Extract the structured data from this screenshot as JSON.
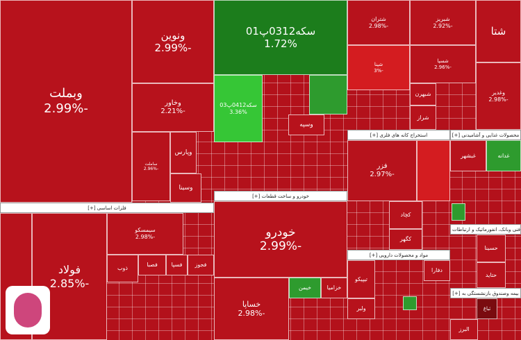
{
  "tiles": [
    {
      "label": "وبملت",
      "change": "-2.99%"
    },
    {
      "label": "ونوین",
      "change": "-2.99%"
    },
    {
      "label": "وخاور",
      "change": "-2.21%"
    },
    {
      "label": "وپارس"
    },
    {
      "label": "ساملت",
      "change": "-2.96%"
    },
    {
      "label": "وسینا"
    },
    {
      "label": "سکه0312پ01",
      "change": "1.72%"
    },
    {
      "label": "سکه0412پ03",
      "change": "3.36%"
    },
    {
      "label": "وسپه"
    },
    {
      "label": "خودرو",
      "change": "-2.99%"
    },
    {
      "label": "خساپا",
      "change": "-2.98%"
    },
    {
      "label": "خیمن"
    },
    {
      "label": "خزامیا"
    },
    {
      "label": "فولاد",
      "change": "-2.85%"
    },
    {
      "label": "سیمسکو",
      "change": "-2.98%"
    },
    {
      "label": "ذوب"
    },
    {
      "label": "فصبا"
    },
    {
      "label": "فسپا"
    },
    {
      "label": "فجوز"
    },
    {
      "label": "شتران",
      "change": "-2.98%"
    },
    {
      "label": "شبریز",
      "change": "-2.92%"
    },
    {
      "label": "شتا"
    },
    {
      "label": "وغدیر",
      "change": "-2.98%"
    },
    {
      "label": "شپنا",
      "change": "-3%"
    },
    {
      "label": "شسپا",
      "change": "-2.96%"
    },
    {
      "label": "شبهرن"
    },
    {
      "label": "شراز"
    },
    {
      "label": "فزر",
      "change": "-2.97%"
    },
    {
      "label": "کچاد"
    },
    {
      "label": "کگهر"
    },
    {
      "label": "تیپیکو"
    },
    {
      "label": "دفارا"
    },
    {
      "label": "غدانه"
    },
    {
      "label": "غبشهر"
    },
    {
      "label": "حسینا"
    },
    {
      "label": "حتاید"
    },
    {
      "label": "البرز"
    },
    {
      "label": "ثباغ"
    },
    {
      "label": "ولبر"
    }
  ],
  "sections": [
    "فلزات اساسی [+]",
    "خودرو و ساخت قطعات [+]",
    "استخراج کانه های فلزی [+]",
    "محصولات غذایی و آشامیدنی [+]",
    "مواد و محصولات دارویی [+]",
    "فنی وبانک، انفورماتیک و ارتباطات [+]",
    "بیمه وصندوق بازنشستگی به [+]"
  ]
}
